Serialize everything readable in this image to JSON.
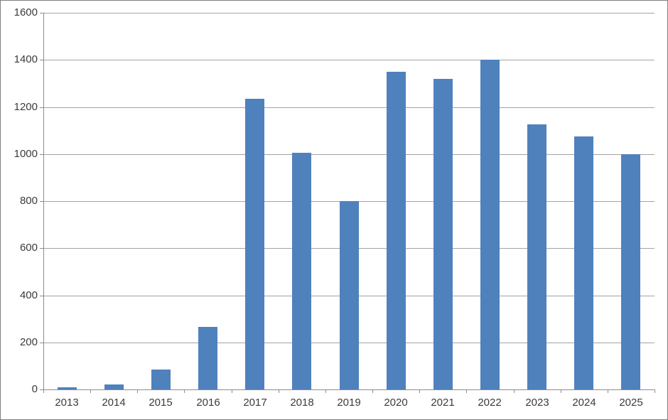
{
  "chart_data": {
    "type": "bar",
    "title": "",
    "xlabel": "",
    "ylabel": "",
    "categories": [
      "2013",
      "2014",
      "2015",
      "2016",
      "2017",
      "2018",
      "2019",
      "2020",
      "2021",
      "2022",
      "2023",
      "2024",
      "2025"
    ],
    "values": [
      10,
      20,
      85,
      265,
      1235,
      1005,
      800,
      1350,
      1320,
      1400,
      1125,
      1075,
      1000
    ],
    "ylim": [
      0,
      1600
    ],
    "ytick_step": 200,
    "ytick_labels": [
      "0",
      "200",
      "400",
      "600",
      "800",
      "1000",
      "1200",
      "1400",
      "1600"
    ],
    "grid": true,
    "legend": false,
    "colors": {
      "bar_fill": "#4f81bd",
      "gridline": "#a3a3a3",
      "axis_line": "#8c8c8c",
      "label_text": "#3b3b3b",
      "frame_border": "#7f7f7f",
      "background": "#ffffff"
    }
  }
}
